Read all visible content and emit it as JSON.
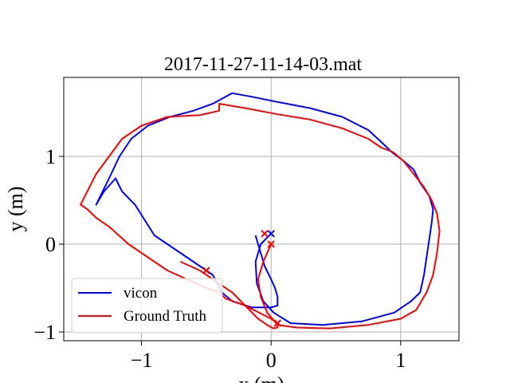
{
  "chart_data": {
    "type": "line",
    "title": "2017-11-27-11-14-03.mat",
    "xlabel": "x (m)",
    "ylabel": "y (m)",
    "xlim": [
      -1.6,
      1.45
    ],
    "ylim": [
      -1.1,
      1.9
    ],
    "xticks": [
      -1,
      0,
      1
    ],
    "xtick_labels": [
      "−1",
      "0",
      "1"
    ],
    "yticks": [
      -1,
      0,
      1
    ],
    "ytick_labels": [
      "−1",
      "0",
      "1"
    ],
    "grid": true,
    "legend_position": "lower-left",
    "series": [
      {
        "name": "vicon",
        "color": "#0000ff",
        "x": [
          0.0,
          -0.08,
          -0.12,
          -0.11,
          -0.06,
          0.02,
          0.15,
          0.4,
          0.7,
          0.95,
          1.08,
          1.15,
          1.18,
          1.2,
          1.22,
          1.24,
          1.25,
          1.22,
          1.15,
          1.1,
          1.02,
          0.93,
          0.86,
          0.75,
          0.55,
          0.3,
          0.05,
          -0.15,
          -0.3,
          -0.45,
          -0.6,
          -0.78,
          -0.95,
          -1.08,
          -1.17,
          -1.25,
          -1.35,
          -1.29,
          -1.23,
          -1.2,
          -1.15,
          -1.05,
          -0.9,
          -0.7,
          -0.55,
          -0.45,
          -0.38,
          -0.3,
          -0.15,
          0.0,
          0.05,
          0.05,
          0.03,
          0.0,
          -0.05,
          -0.1,
          -0.12
        ],
        "y": [
          0.12,
          0.0,
          -0.2,
          -0.45,
          -0.65,
          -0.78,
          -0.9,
          -0.92,
          -0.88,
          -0.78,
          -0.65,
          -0.55,
          -0.35,
          -0.15,
          0.05,
          0.25,
          0.4,
          0.55,
          0.7,
          0.85,
          0.95,
          1.05,
          1.15,
          1.3,
          1.45,
          1.55,
          1.62,
          1.68,
          1.72,
          1.6,
          1.52,
          1.45,
          1.35,
          1.2,
          1.0,
          0.75,
          0.45,
          0.6,
          0.7,
          0.75,
          0.6,
          0.45,
          0.1,
          -0.1,
          -0.25,
          -0.35,
          -0.55,
          -0.65,
          -0.72,
          -0.72,
          -0.7,
          -0.6,
          -0.5,
          -0.4,
          -0.25,
          0.0,
          0.1
        ]
      },
      {
        "name": "Ground Truth",
        "color": "#ff0000",
        "x": [
          0.0,
          -0.06,
          -0.1,
          -0.08,
          -0.03,
          0.05,
          0.2,
          0.45,
          0.75,
          1.0,
          1.12,
          1.2,
          1.25,
          1.28,
          1.3,
          1.28,
          1.24,
          1.18,
          1.1,
          1.02,
          0.94,
          0.85,
          0.75,
          0.55,
          0.3,
          0.05,
          -0.2,
          -0.4,
          -0.4,
          -0.55,
          -0.8,
          -1.0,
          -1.15,
          -1.25,
          -1.35,
          -1.47,
          -1.42,
          -1.35,
          -1.25,
          -1.1,
          -0.95,
          -0.8,
          -0.65,
          -0.5,
          -0.4,
          -0.35,
          -0.2,
          0.0,
          0.05,
          0.05,
          0.02,
          -0.02,
          -0.1,
          -0.3,
          -0.55,
          -0.7
        ],
        "y": [
          0.0,
          -0.2,
          -0.4,
          -0.6,
          -0.78,
          -0.92,
          -0.95,
          -0.96,
          -0.92,
          -0.85,
          -0.75,
          -0.55,
          -0.35,
          -0.1,
          0.15,
          0.35,
          0.5,
          0.65,
          0.8,
          0.95,
          1.05,
          1.1,
          1.2,
          1.32,
          1.42,
          1.48,
          1.55,
          1.6,
          1.52,
          1.47,
          1.45,
          1.35,
          1.2,
          1.0,
          0.8,
          0.45,
          0.4,
          0.3,
          0.2,
          0.0,
          -0.15,
          -0.3,
          -0.4,
          -0.5,
          -0.55,
          -0.62,
          -0.7,
          -0.85,
          -0.9,
          -0.95,
          -0.96,
          -0.93,
          -0.85,
          -0.55,
          -0.3,
          -0.2
        ]
      }
    ],
    "markers": [
      {
        "series": "vicon",
        "x": 0.0,
        "y": 0.12,
        "symbol": "x",
        "color": "#0000ff"
      },
      {
        "series": "Ground Truth",
        "x": 0.0,
        "y": 0.0,
        "symbol": "x",
        "color": "#ff0000"
      },
      {
        "series": "Ground Truth",
        "x": -0.05,
        "y": 0.12,
        "symbol": "x",
        "color": "#ff0000"
      },
      {
        "series": "Ground Truth",
        "x": -0.5,
        "y": -0.3,
        "symbol": "x",
        "color": "#ff0000"
      },
      {
        "series": "Ground Truth",
        "x": 0.05,
        "y": -0.9,
        "symbol": "x",
        "color": "#ff0000"
      }
    ]
  }
}
